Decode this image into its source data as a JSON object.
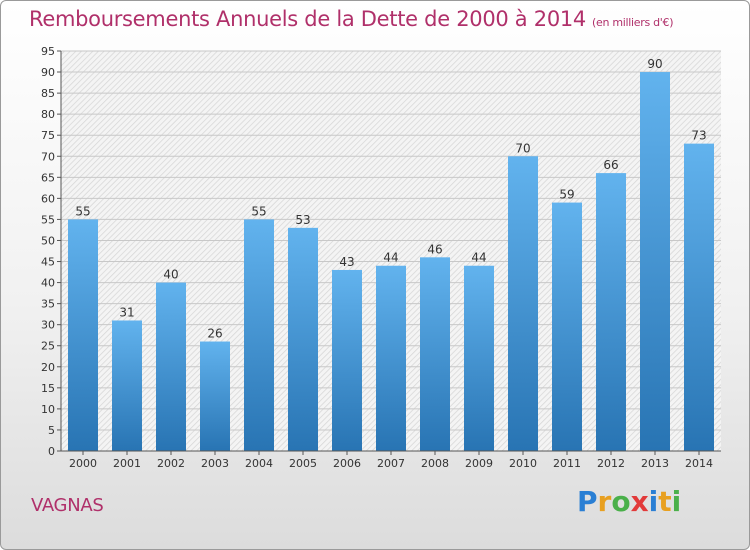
{
  "title": "Remboursements Annuels de la Dette de 2000 à 2014",
  "title_unit": "(en milliers d'€)",
  "commune": "VAGNAS",
  "logo": {
    "letters": [
      "P",
      "r",
      "o",
      "x",
      "i",
      "t",
      "i"
    ],
    "colors": [
      "#2a7fd4",
      "#e8a020",
      "#4ab04a",
      "#e23a3a",
      "#2a7fd4",
      "#e8a020",
      "#4ab04a"
    ]
  },
  "colors": {
    "title": "#b0306a",
    "bar_top": "#62b3ee",
    "bar_bottom": "#2874b3",
    "grid": "#c8c8c8"
  },
  "chart_data": {
    "type": "bar",
    "title": "Remboursements Annuels de la Dette de 2000 à 2014",
    "subtitle": "(en milliers d'€)",
    "xlabel": "",
    "ylabel": "",
    "categories": [
      "2000",
      "2001",
      "2002",
      "2003",
      "2004",
      "2005",
      "2006",
      "2007",
      "2008",
      "2009",
      "2010",
      "2011",
      "2012",
      "2013",
      "2014"
    ],
    "values": [
      55,
      31,
      40,
      26,
      55,
      53,
      43,
      44,
      46,
      44,
      70,
      59,
      66,
      90,
      73
    ],
    "ylim": [
      0,
      95
    ],
    "yticks": [
      0,
      5,
      10,
      15,
      20,
      25,
      30,
      35,
      40,
      45,
      50,
      55,
      60,
      65,
      70,
      75,
      80,
      85,
      90,
      95
    ],
    "grid": true,
    "legend": "none"
  }
}
